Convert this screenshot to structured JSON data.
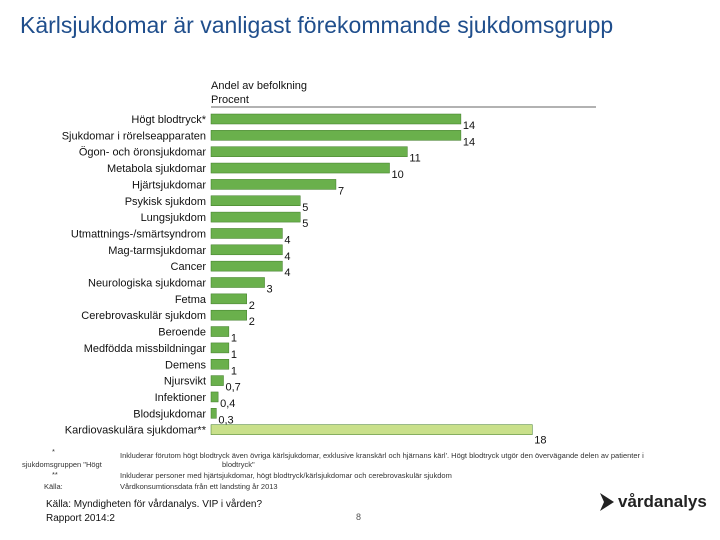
{
  "title": "Kärlsjukdomar är vanligast förekommande sjukdomsgrupp",
  "chart_data": {
    "type": "bar",
    "orientation": "horizontal",
    "axis_caption": [
      "Andel av befolkning",
      "Procent"
    ],
    "xlim": [
      0,
      20
    ],
    "bar_color": "#6ab04c",
    "highlight_color": "#c9e08a",
    "categories": [
      "Högt blodtryck*",
      "Sjukdomar i rörelseapparaten",
      "Ögon- och öronsjukdomar",
      "Metabola sjukdomar",
      "Hjärtsjukdomar",
      "Psykisk sjukdom",
      "Lungsjukdom",
      "Utmattnings-/smärtsyndrom",
      "Mag-tarmsjukdomar",
      "Cancer",
      "Neurologiska sjukdomar",
      "Fetma",
      "Cerebrovaskulär sjukdom",
      "Beroende",
      "Medfödda missbildningar",
      "Demens",
      "Njursvikt",
      "Infektioner",
      "Blodsjukdomar",
      "Kardiovaskulära sjukdomar**"
    ],
    "values": [
      14,
      14,
      11,
      10,
      7,
      5,
      5,
      4,
      4,
      4,
      3,
      2,
      2,
      1,
      1,
      1,
      0.7,
      0.4,
      0.3,
      18
    ],
    "value_labels": [
      "14",
      "14",
      "11",
      "10",
      "7",
      "5",
      "5",
      "4",
      "4",
      "4",
      "3",
      "2",
      "2",
      "1",
      "1",
      "1",
      "0,7",
      "0,4",
      "0,3",
      "18"
    ],
    "highlight_index": 19
  },
  "footnotes": {
    "star1_mark": "*",
    "star1_text": "Inkluderar förutom högt blodtryck även övriga kärlsjukdomar, exklusive kranskärl och hjärnans kärl'. Högt blodtryck utgör den övervägande delen av patienter i",
    "star1_left_cont": "sjukdomsgruppen \"Högt",
    "star1_right_cont": "blodtryck\"",
    "star2_mark": "**",
    "star2_text": "Inkluderar personer med hjärtsjukdomar, högt blodtryck/kärlsjukdomar och cerebrovaskulär sjukdom",
    "source_mark": "Källa:",
    "source_text": "Vårdkonsumtionsdata från ett landsting år 2013"
  },
  "source": {
    "line1": "Källa: Myndigheten för vårdanalys. VIP i vården?",
    "line2": "Rapport 2014:2"
  },
  "page_number": "8",
  "logo": {
    "text": "vårdanalys",
    "icon": "arrow-logo-icon"
  }
}
